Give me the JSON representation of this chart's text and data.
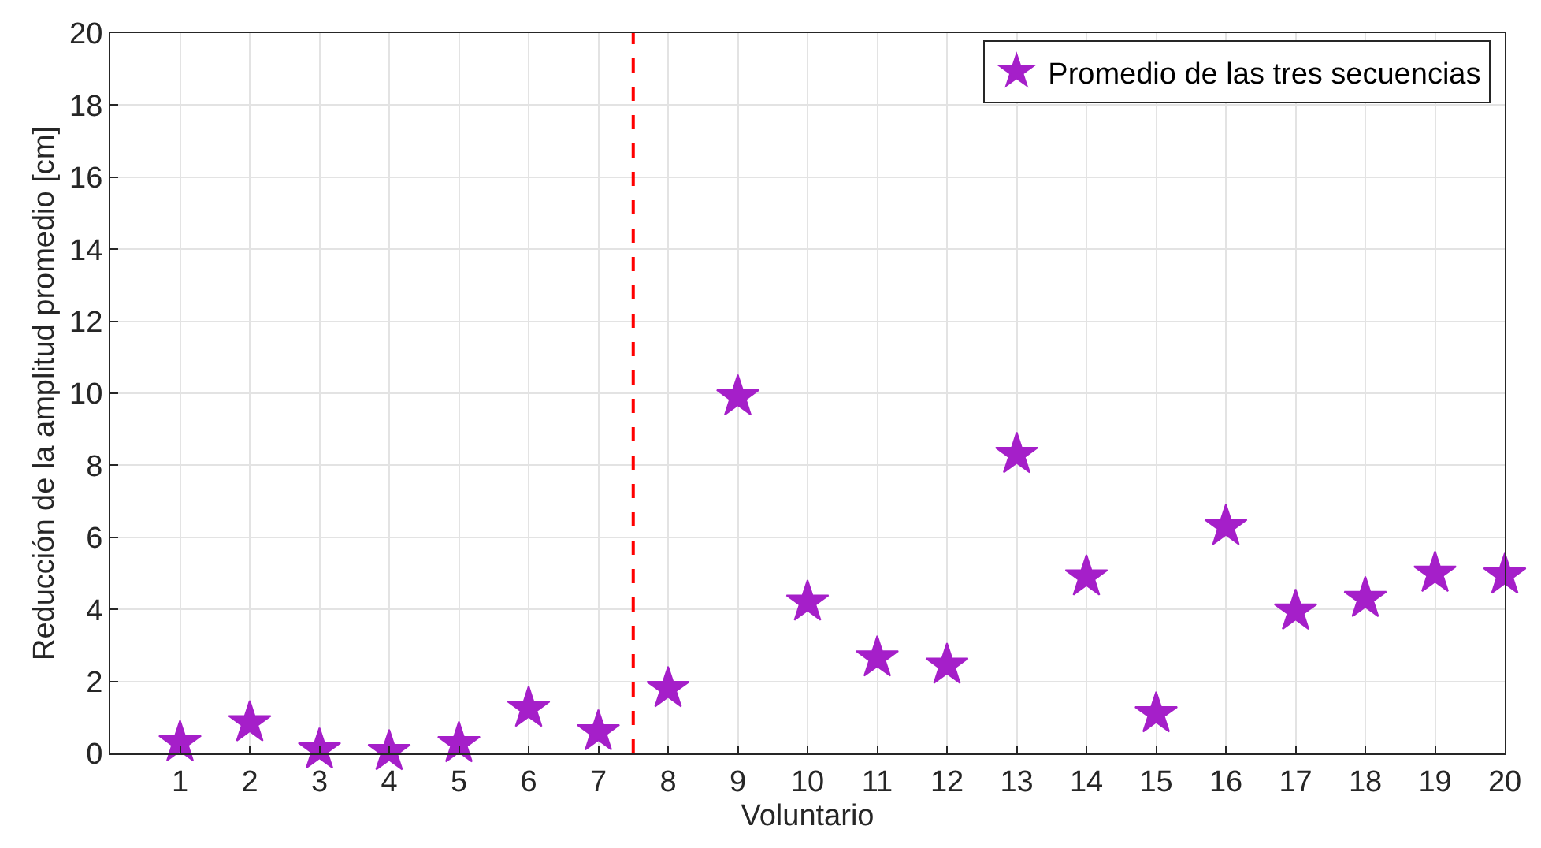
{
  "chart_data": {
    "type": "scatter",
    "xlabel": "Voluntario",
    "ylabel": "Reducción de la amplitud promedio [cm]",
    "x": [
      1,
      2,
      3,
      4,
      5,
      6,
      7,
      8,
      9,
      10,
      11,
      12,
      13,
      14,
      15,
      16,
      17,
      18,
      19,
      20
    ],
    "series": [
      {
        "name": "Promedio de las tres secuencias",
        "color": "#a51fc9",
        "values": [
          0.3,
          0.85,
          0.1,
          0.05,
          0.27,
          1.25,
          0.6,
          1.8,
          9.9,
          4.2,
          2.65,
          2.45,
          8.3,
          4.9,
          1.1,
          6.3,
          3.95,
          4.3,
          5.0,
          4.95
        ]
      }
    ],
    "xlim": [
      0,
      20
    ],
    "xticks": [
      1,
      2,
      3,
      4,
      5,
      6,
      7,
      8,
      9,
      10,
      11,
      12,
      13,
      14,
      15,
      16,
      17,
      18,
      19,
      20
    ],
    "ylim": [
      0,
      20
    ],
    "yticks": [
      0,
      2,
      4,
      6,
      8,
      10,
      12,
      14,
      16,
      18,
      20
    ],
    "ref_lines": [
      {
        "axis": "x",
        "value": 7.5,
        "color": "#ff0000",
        "line_style": "dashed"
      }
    ],
    "grid": true,
    "legend": "top right",
    "marker": "star"
  }
}
